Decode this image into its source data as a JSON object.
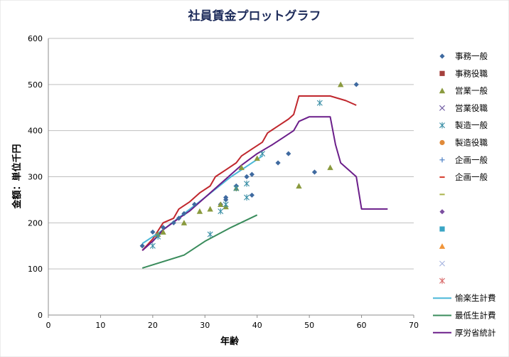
{
  "chart_data": {
    "type": "scatter",
    "title": "社員賃金プロットグラフ",
    "xlabel": "年齢",
    "ylabel": "金額：単位千円",
    "xlim": [
      0,
      70
    ],
    "ylim": [
      0,
      600
    ],
    "x_ticks": [
      0,
      10,
      20,
      30,
      40,
      50,
      60,
      70
    ],
    "y_ticks": [
      0,
      100,
      200,
      300,
      400,
      500,
      600
    ],
    "grid": "horizontal",
    "legend_position": "right",
    "series": [
      {
        "name": "事務一般",
        "kind": "scatter",
        "marker": "diamond",
        "color": "#3f6aa0",
        "points": [
          [
            18,
            150
          ],
          [
            20,
            180
          ],
          [
            22,
            190
          ],
          [
            24,
            200
          ],
          [
            25,
            210
          ],
          [
            26,
            220
          ],
          [
            28,
            240
          ],
          [
            33,
            240
          ],
          [
            34,
            250
          ],
          [
            34,
            255
          ],
          [
            36,
            280
          ],
          [
            38,
            300
          ],
          [
            39,
            305
          ],
          [
            39,
            260
          ],
          [
            44,
            330
          ],
          [
            46,
            350
          ],
          [
            51,
            310
          ],
          [
            59,
            500
          ]
        ]
      },
      {
        "name": "事務役職",
        "kind": "scatter",
        "marker": "square",
        "color": "#a5403c",
        "points": []
      },
      {
        "name": "営業一般",
        "kind": "scatter",
        "marker": "triangle",
        "color": "#8a9a3e",
        "points": [
          [
            21,
            175
          ],
          [
            22,
            180
          ],
          [
            26,
            200
          ],
          [
            29,
            225
          ],
          [
            31,
            230
          ],
          [
            33,
            240
          ],
          [
            34,
            235
          ],
          [
            36,
            275
          ],
          [
            37,
            320
          ],
          [
            40,
            340
          ],
          [
            48,
            280
          ],
          [
            54,
            320
          ],
          [
            56,
            500
          ]
        ]
      },
      {
        "name": "営業役職",
        "kind": "scatter",
        "marker": "x",
        "color": "#6c57a0",
        "points": []
      },
      {
        "name": "製造一般",
        "kind": "scatter",
        "marker": "asterisk",
        "color": "#3a8fa6",
        "points": [
          [
            20,
            150
          ],
          [
            21,
            170
          ],
          [
            31,
            175
          ],
          [
            33,
            225
          ],
          [
            34,
            240
          ],
          [
            36,
            275
          ],
          [
            38,
            255
          ],
          [
            38,
            285
          ],
          [
            41,
            350
          ],
          [
            52,
            460
          ]
        ]
      },
      {
        "name": "製造役職",
        "kind": "scatter",
        "marker": "circle",
        "color": "#e08a3a",
        "points": []
      },
      {
        "name": "企画一般",
        "kind": "scatter",
        "marker": "plus",
        "color": "#4a7fc4",
        "points": []
      },
      {
        "name": "企画一般",
        "kind": "scatter",
        "marker": "dash",
        "color": "#d63a2a",
        "points": []
      },
      {
        "name": "",
        "kind": "scatter",
        "marker": "dash",
        "color": "#aab34a",
        "points": []
      },
      {
        "name": "",
        "kind": "scatter",
        "marker": "diamond",
        "color": "#7b4ea0",
        "points": []
      },
      {
        "name": "",
        "kind": "scatter",
        "marker": "square",
        "color": "#3aa5c4",
        "points": []
      },
      {
        "name": "",
        "kind": "scatter",
        "marker": "triangle",
        "color": "#f0953a",
        "points": []
      },
      {
        "name": "",
        "kind": "scatter",
        "marker": "x",
        "color": "#a8b6e0",
        "points": []
      },
      {
        "name": "",
        "kind": "scatter",
        "marker": "asterisk",
        "color": "#d86a6a",
        "points": []
      },
      {
        "name": "",
        "kind": "line",
        "color": "#c0272d",
        "points": [
          [
            18,
            140
          ],
          [
            20,
            165
          ],
          [
            22,
            200
          ],
          [
            24,
            210
          ],
          [
            25,
            230
          ],
          [
            27,
            245
          ],
          [
            29,
            265
          ],
          [
            31,
            280
          ],
          [
            32,
            300
          ],
          [
            34,
            315
          ],
          [
            36,
            330
          ],
          [
            37,
            345
          ],
          [
            39,
            360
          ],
          [
            41,
            375
          ],
          [
            42,
            395
          ],
          [
            44,
            410
          ],
          [
            46,
            425
          ],
          [
            47,
            435
          ],
          [
            48,
            475
          ],
          [
            54,
            475
          ],
          [
            57,
            465
          ],
          [
            59,
            455
          ]
        ]
      },
      {
        "name": "愉楽生計費",
        "kind": "line",
        "color": "#4bb8d8",
        "points": [
          [
            18,
            155
          ],
          [
            22,
            185
          ],
          [
            26,
            220
          ],
          [
            30,
            255
          ],
          [
            35,
            300
          ],
          [
            41,
            345
          ]
        ]
      },
      {
        "name": "最低生計費",
        "kind": "line",
        "color": "#3a8c5c",
        "points": [
          [
            18,
            102
          ],
          [
            26,
            130
          ],
          [
            30,
            160
          ],
          [
            35,
            190
          ],
          [
            40,
            217
          ]
        ]
      },
      {
        "name": "厚労省統計",
        "kind": "line",
        "color": "#6b1e8a",
        "points": [
          [
            18,
            140
          ],
          [
            20,
            160
          ],
          [
            22,
            185
          ],
          [
            25,
            210
          ],
          [
            27,
            225
          ],
          [
            30,
            255
          ],
          [
            32,
            275
          ],
          [
            35,
            305
          ],
          [
            37,
            325
          ],
          [
            40,
            350
          ],
          [
            43,
            370
          ],
          [
            45,
            385
          ],
          [
            47,
            400
          ],
          [
            48,
            420
          ],
          [
            50,
            430
          ],
          [
            54,
            430
          ],
          [
            55,
            370
          ],
          [
            56,
            330
          ],
          [
            58,
            310
          ],
          [
            59,
            300
          ],
          [
            60,
            230
          ],
          [
            65,
            230
          ]
        ]
      }
    ]
  }
}
